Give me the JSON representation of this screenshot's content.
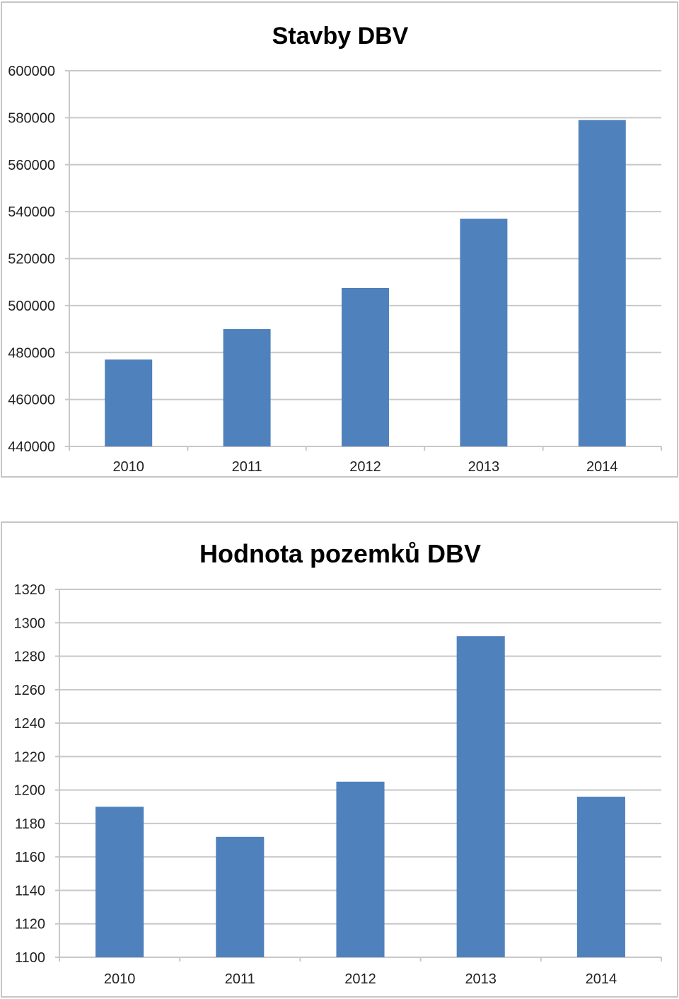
{
  "chart_data": [
    {
      "type": "bar",
      "title": "Stavby DBV",
      "categories": [
        "2010",
        "2011",
        "2012",
        "2013",
        "2014"
      ],
      "values": [
        477000,
        490000,
        507500,
        537000,
        579000
      ],
      "ylim": [
        440000,
        600000
      ],
      "yticks": [
        440000,
        460000,
        480000,
        500000,
        520000,
        540000,
        560000,
        580000,
        600000
      ],
      "grid": true,
      "bar_color": "#4f81bd"
    },
    {
      "type": "bar",
      "title": "Hodnota pozemků DBV",
      "categories": [
        "2010",
        "2011",
        "2012",
        "2013",
        "2014"
      ],
      "values": [
        1190,
        1172,
        1205,
        1292,
        1196
      ],
      "ylim": [
        1100,
        1320
      ],
      "yticks": [
        1100,
        1120,
        1140,
        1160,
        1180,
        1200,
        1220,
        1240,
        1260,
        1280,
        1300,
        1320
      ],
      "grid": true,
      "bar_color": "#4f81bd"
    }
  ]
}
